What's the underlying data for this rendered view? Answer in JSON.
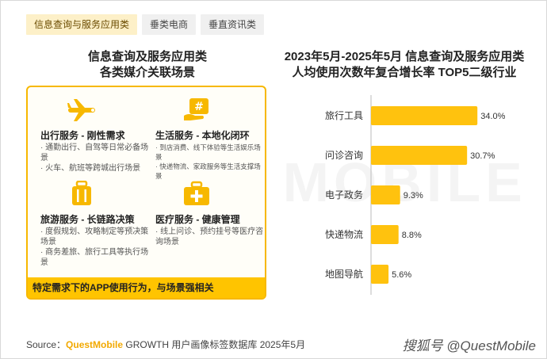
{
  "tabs": [
    {
      "label": "信息查询与服务应用类"
    },
    {
      "label": "垂类电商"
    },
    {
      "label": "垂直资讯类"
    }
  ],
  "left_panel": {
    "title_line1": "信息查询及服务应用类",
    "title_line2": "各类媒介关联场景",
    "cells": [
      {
        "title": "出行服务 - 刚性需求",
        "icon": "airplane-icon",
        "points": [
          "· 通勤出行、自驾等日常必备场景",
          "· 火车、航班等跨城出行场景"
        ],
        "small": false
      },
      {
        "title": "生活服务 - 本地化闭环",
        "icon": "hand-hash-icon",
        "points": [
          "· 到店消费、线下体验等生活娱乐场景",
          "· 快递物流、家政服务等生活支撑场景"
        ],
        "small": true
      },
      {
        "title": "旅游服务 - 长链路决策",
        "icon": "luggage-icon",
        "points": [
          "· 度假规划、攻略制定等预决策场景",
          "· 商务差旅、旅行工具等执行场景"
        ],
        "small": false
      },
      {
        "title": "医疗服务 - 健康管理",
        "icon": "medical-kit-icon",
        "points": [
          "· 线上问诊、预约挂号等医疗咨询场景"
        ],
        "small": false
      }
    ],
    "footer": "特定需求下的APP使用行为，与场景强相关"
  },
  "chart_data": {
    "type": "bar",
    "orientation": "horizontal",
    "title_line1": "2023年5月-2025年5月 信息查询及服务应用类",
    "title_line2": "人均使用次数年复合增长率 TOP5二级行业",
    "categories": [
      "旅行工具",
      "问诊咨询",
      "电子政务",
      "快递物流",
      "地图导航"
    ],
    "values": [
      34.0,
      30.7,
      9.3,
      8.8,
      5.6
    ],
    "value_labels": [
      "34.0%",
      "30.7%",
      "9.3%",
      "8.8%",
      "5.6%"
    ],
    "unit": "%",
    "xlim": [
      0,
      38
    ],
    "grid": false,
    "bar_color": "#ffc20e"
  },
  "footer": {
    "source_prefix": "Source：",
    "source_brand": "QuestMobile",
    "source_rest": " GROWTH 用户画像标签数据库 2025年5月",
    "credit": "搜狐号 @QuestMobile"
  },
  "watermark": "QUEST MOBILE"
}
